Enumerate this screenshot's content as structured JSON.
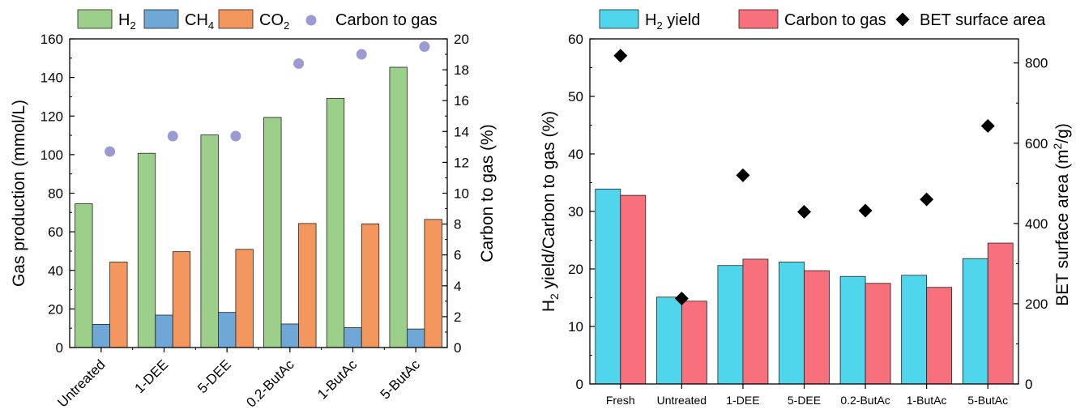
{
  "chart_data": [
    {
      "type": "bar",
      "categories": [
        "Untreated",
        "1-DEE",
        "5-DEE",
        "0.2-ButAc",
        "1-ButAc",
        "5-ButAc"
      ],
      "ylabel": "Gas production (mmol/L)",
      "y2label": "Carbon to gas (%)",
      "ylim": [
        0,
        160
      ],
      "y2lim": [
        0,
        20
      ],
      "yticks": [
        0,
        20,
        40,
        60,
        80,
        100,
        120,
        140,
        160
      ],
      "y2ticks": [
        0,
        2,
        4,
        6,
        8,
        10,
        12,
        14,
        16,
        18,
        20
      ],
      "legend_position": "top",
      "series": [
        {
          "name": "H",
          "sub": "2",
          "color": "#9bcf8a",
          "axis": "left",
          "kind": "bar",
          "values": [
            74.5,
            100.7,
            110.2,
            119.3,
            129.2,
            145.3
          ]
        },
        {
          "name": "CH",
          "sub": "4",
          "color": "#6fa8d6",
          "axis": "left",
          "kind": "bar",
          "values": [
            12,
            16.8,
            18.2,
            12.2,
            10.3,
            9.6
          ]
        },
        {
          "name": "CO",
          "sub": "2",
          "color": "#f4975f",
          "axis": "left",
          "kind": "bar",
          "values": [
            44.3,
            49.7,
            50.9,
            64.3,
            64.1,
            66.4
          ]
        },
        {
          "name": "Carbon to gas",
          "sub": "",
          "color": "#9b9bd3",
          "axis": "right",
          "kind": "scatter",
          "values": [
            12.7,
            13.7,
            13.7,
            18.4,
            19.0,
            19.5
          ]
        }
      ]
    },
    {
      "type": "bar",
      "categories": [
        "Fresh",
        "Untreated",
        "1-DEE",
        "5-DEE",
        "0.2-ButAc",
        "1-ButAc",
        "5-ButAc"
      ],
      "ylabel": "H2 yield/Carbon to gas (%)",
      "ylabel_parts": {
        "pre": "H",
        "sub": "2",
        "post": " yield/Carbon to gas (%)"
      },
      "y2label": "BET surface area (m2/g)",
      "y2label_parts": {
        "pre": "BET surface area (m",
        "sup": "2",
        "post": "/g)"
      },
      "ylim": [
        0,
        60
      ],
      "y2lim": [
        0,
        860
      ],
      "yticks": [
        0,
        10,
        20,
        30,
        40,
        50,
        60
      ],
      "y2ticks": [
        0,
        200,
        400,
        600,
        800
      ],
      "legend_position": "top",
      "series": [
        {
          "name": "H",
          "sub": "2",
          "name_rest": " yield",
          "color": "#4fd6ec",
          "axis": "left",
          "kind": "bar",
          "values": [
            33.9,
            15.1,
            20.6,
            21.2,
            18.7,
            18.9,
            21.8
          ]
        },
        {
          "name": "Carbon to gas",
          "sub": "",
          "name_rest": "",
          "color": "#f7707c",
          "axis": "left",
          "kind": "bar",
          "values": [
            32.8,
            14.4,
            21.7,
            19.7,
            17.5,
            16.8,
            24.5
          ]
        },
        {
          "name": "BET surface area",
          "sub": "",
          "name_rest": "",
          "color": "#000000",
          "axis": "right",
          "kind": "scatter",
          "values": [
            818,
            213,
            520,
            429,
            432,
            460,
            643
          ]
        }
      ]
    }
  ]
}
